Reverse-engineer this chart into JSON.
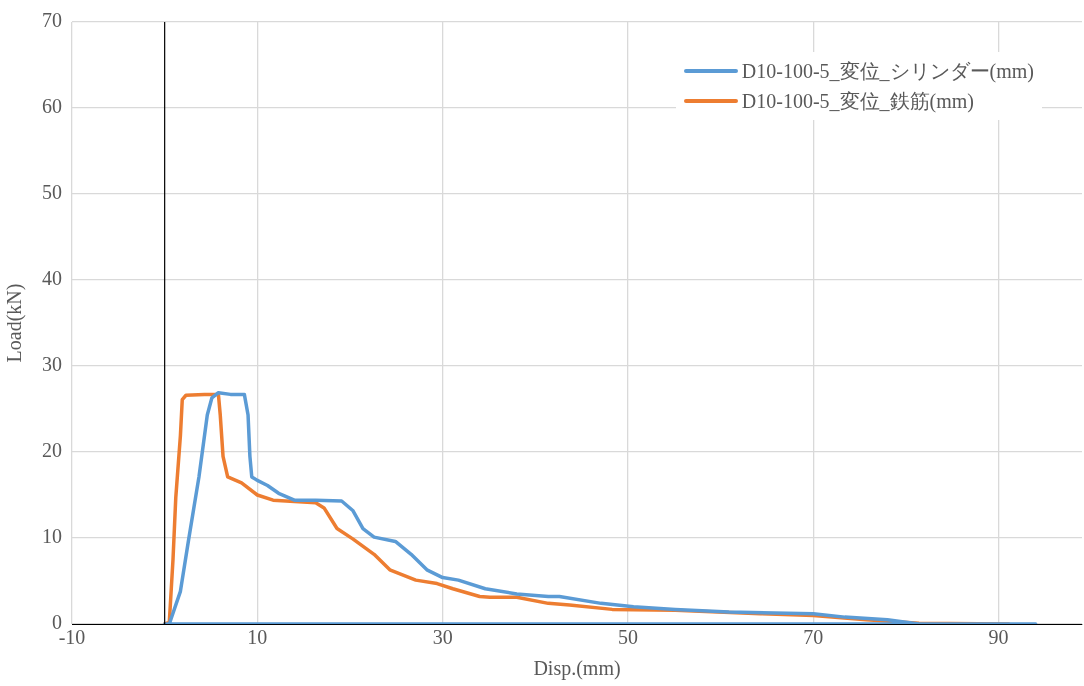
{
  "chart_data": {
    "type": "line",
    "xlabel": "Disp.(mm)",
    "ylabel": "Load(kN)",
    "xlim": [
      -10,
      99
    ],
    "xticks": [
      -10,
      10,
      30,
      50,
      70,
      90
    ],
    "ylim": [
      0,
      70
    ],
    "yticks": [
      0,
      10,
      20,
      30,
      40,
      50,
      60,
      70
    ],
    "grid": true,
    "legend": "top right",
    "marker": "none",
    "line_style": "solid",
    "ref_lines": [
      {
        "axis": "x",
        "value": 0,
        "color": "#000000"
      }
    ],
    "series": [
      {
        "name": "D10-100-5_変位_シリンダー(mm)",
        "color": "#5b9bd5",
        "x": [
          0.5,
          1.7,
          2.6,
          3.7,
          4.6,
          5.1,
          5.8,
          7.1,
          8.6,
          9,
          9.2,
          9.4,
          10,
          11.1,
          12.3,
          14,
          16.3,
          19.1,
          20.3,
          21.4,
          22.6,
          24.9,
          26.6,
          28.3,
          30,
          31.7,
          34.6,
          38,
          41.4,
          42.6,
          47.1,
          50.6,
          55.1,
          60.9,
          70,
          73.4,
          78,
          81.4,
          94,
          0
        ],
        "values": [
          0,
          3.8,
          9.9,
          17.1,
          24.3,
          26.3,
          26.9,
          26.7,
          26.7,
          24.3,
          19.5,
          17.1,
          16.7,
          16.1,
          15.2,
          14.4,
          14.4,
          14.3,
          13.2,
          11.1,
          10.1,
          9.6,
          8.1,
          6.3,
          5.4,
          5.1,
          4.1,
          3.5,
          3.2,
          3.2,
          2.4,
          2,
          1.7,
          1.4,
          1.2,
          0.8,
          0.5,
          0,
          0,
          0
        ]
      },
      {
        "name": "D10-100-5_変位_鉄筋(mm)",
        "color": "#ed7d31",
        "x": [
          0,
          0.5,
          0.9,
          1.2,
          1.7,
          1.9,
          2.3,
          4.3,
          5.8,
          6,
          6.3,
          6.8,
          8.3,
          10,
          11.7,
          16.3,
          17.2,
          18.6,
          20.3,
          22.6,
          24.3,
          27.1,
          29.4,
          31.1,
          34,
          35.1,
          38,
          41.4,
          43.7,
          48.3,
          55.1,
          64.3,
          70,
          75.7,
          81.4,
          91.1
        ],
        "values": [
          0,
          0.2,
          7.5,
          14.7,
          21.9,
          26.1,
          26.6,
          26.7,
          26.7,
          24.3,
          19.5,
          17.1,
          16.4,
          15,
          14.4,
          14.1,
          13.5,
          11.1,
          9.9,
          8.1,
          6.3,
          5.1,
          4.7,
          4.1,
          3.2,
          3.1,
          3.1,
          2.4,
          2.2,
          1.7,
          1.6,
          1.2,
          1,
          0.5,
          0.1,
          0
        ]
      }
    ]
  }
}
